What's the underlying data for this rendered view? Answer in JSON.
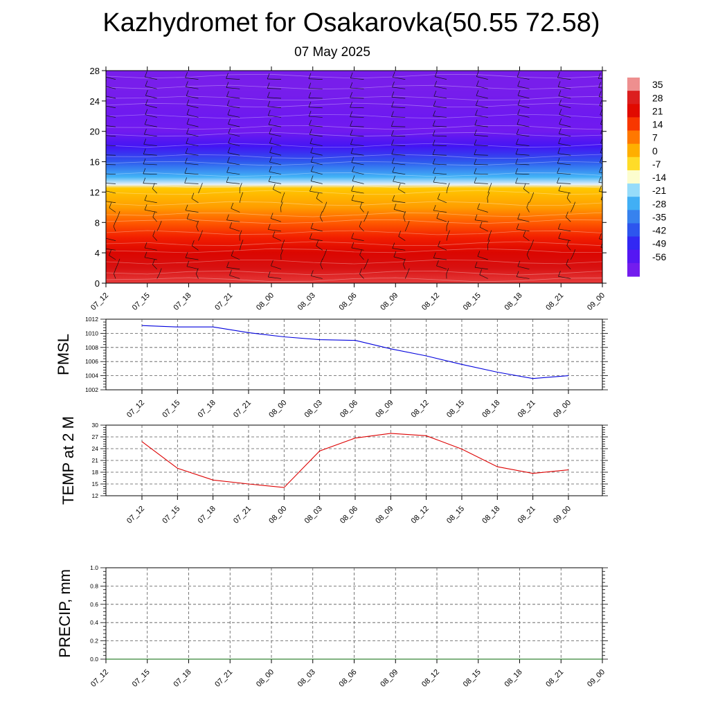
{
  "header": {
    "title": "Kazhydromet for Osakarovka(50.55 72.58)",
    "date": "07 May 2025"
  },
  "chart_data": [
    {
      "id": "temperature-profile",
      "type": "heatmap",
      "title": "",
      "xlabel": "",
      "ylabel": "",
      "x_ticks": [
        "07_12",
        "07_15",
        "07_18",
        "07_21",
        "08_00",
        "08_03",
        "08_06",
        "08_09",
        "08_12",
        "08_15",
        "08_18",
        "08_21",
        "09_00"
      ],
      "y_ticks": [
        0,
        4,
        8,
        12,
        16,
        20,
        24,
        28
      ],
      "ylim": [
        0,
        28
      ],
      "colorbar_labels": [
        "35",
        "28",
        "21",
        "14",
        "7",
        "0",
        "-7",
        "-14",
        "-21",
        "-28",
        "-35",
        "-42",
        "-49",
        "-56"
      ],
      "colorbar_range": [
        -63,
        42
      ],
      "profile_levels": [
        0,
        2,
        4,
        6,
        8,
        10,
        12.5,
        13,
        14,
        16,
        18,
        20,
        22,
        24,
        26,
        28
      ],
      "profile_values": [
        35,
        30,
        26,
        20,
        14,
        6,
        0,
        -14,
        -24,
        -38,
        -50,
        -58,
        -56,
        -60,
        -63,
        -63
      ],
      "wind_barbs": true
    },
    {
      "id": "pmsl",
      "type": "line",
      "ylabel": "PMSL",
      "x": [
        "07_12",
        "07_15",
        "07_18",
        "07_21",
        "08_00",
        "08_03",
        "08_06",
        "08_09",
        "08_12",
        "08_15",
        "08_18",
        "08_21",
        "09_00"
      ],
      "y_ticks": [
        1002,
        1004,
        1006,
        1008,
        1010,
        1012
      ],
      "ylim": [
        1002,
        1012
      ],
      "grid": true,
      "color": "#0000dd",
      "values": [
        1011.1,
        1010.9,
        1010.9,
        1010.1,
        1009.5,
        1009.1,
        1009.0,
        1007.8,
        1006.8,
        1005.6,
        1004.5,
        1003.6,
        1004.0
      ]
    },
    {
      "id": "temp-2m",
      "type": "line",
      "ylabel": "TEMP at 2 M",
      "x": [
        "07_12",
        "07_15",
        "07_18",
        "07_21",
        "08_00",
        "08_03",
        "08_06",
        "08_09",
        "08_12",
        "08_15",
        "08_18",
        "08_21",
        "09_00"
      ],
      "y_ticks": [
        12,
        15,
        18,
        21,
        24,
        27,
        30
      ],
      "ylim": [
        12,
        30
      ],
      "grid": true,
      "color": "#dd0000",
      "values": [
        25.8,
        19.0,
        16.0,
        15.0,
        14.1,
        23.4,
        26.7,
        27.9,
        27.3,
        23.9,
        19.4,
        17.7,
        18.6
      ]
    },
    {
      "id": "precip",
      "type": "line",
      "ylabel": "PRECIP, mm",
      "x": [
        "07_12",
        "07_15",
        "07_18",
        "07_21",
        "08_00",
        "08_03",
        "08_06",
        "08_09",
        "08_12",
        "08_15",
        "08_18",
        "08_21",
        "09_00"
      ],
      "y_ticks": [
        "0.0",
        "0.2",
        "0.4",
        "0.6",
        "0.8",
        "1.0"
      ],
      "ylim": [
        0,
        1
      ],
      "grid": true,
      "color": "#006400",
      "values": [
        0,
        0,
        0,
        0,
        0,
        0,
        0,
        0,
        0,
        0,
        0,
        0,
        0
      ]
    }
  ]
}
